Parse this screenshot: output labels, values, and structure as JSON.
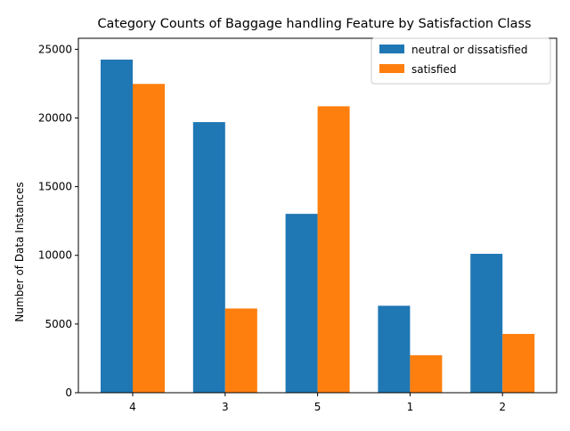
{
  "chart_data": {
    "type": "bar",
    "title": "Category Counts of Baggage handling Feature by Satisfaction Class",
    "xlabel": "",
    "ylabel": "Number of Data Instances",
    "categories": [
      "4",
      "3",
      "5",
      "1",
      "2"
    ],
    "series": [
      {
        "name": "neutral or dissatisfied",
        "color": "#1f77b4",
        "values": [
          24250,
          19700,
          13020,
          6330,
          10110
        ]
      },
      {
        "name": "satisfied",
        "color": "#ff7f0e",
        "values": [
          22480,
          6130,
          20850,
          2730,
          4280
        ]
      }
    ],
    "ylim": [
      0,
      25800
    ],
    "yticks": [
      0,
      5000,
      10000,
      15000,
      20000,
      25000
    ],
    "grid": false,
    "legend_position": "top-right"
  }
}
